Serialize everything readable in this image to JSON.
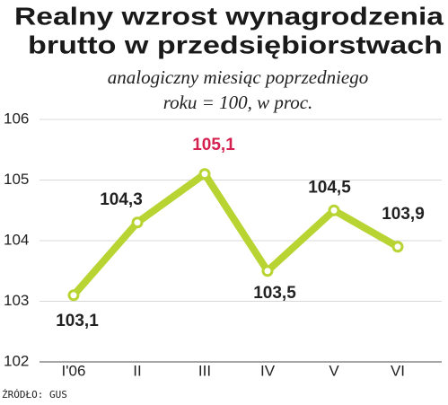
{
  "chart_data": {
    "type": "line",
    "title": [
      "Realny wzrost wynagrodzenia",
      "brutto w przedsiębiorstwach"
    ],
    "subtitle": [
      "analogiczny miesiąc poprzedniego",
      "roku = 100, w proc."
    ],
    "categories": [
      "I'06",
      "II",
      "III",
      "IV",
      "V",
      "VI"
    ],
    "values": [
      103.1,
      104.3,
      105.1,
      103.5,
      104.5,
      103.9
    ],
    "value_labels": [
      "103,1",
      "104,3",
      "105,1",
      "103,5",
      "104,5",
      "103,9"
    ],
    "value_label_colors": [
      "#222222",
      "#222222",
      "#d4214f",
      "#222222",
      "#222222",
      "#222222"
    ],
    "color": "#b8d432",
    "ylim": [
      102,
      106
    ],
    "yticks": [
      102,
      103,
      104,
      105,
      106
    ],
    "grid": true,
    "source": "ŹRÓDŁO: GUS"
  }
}
